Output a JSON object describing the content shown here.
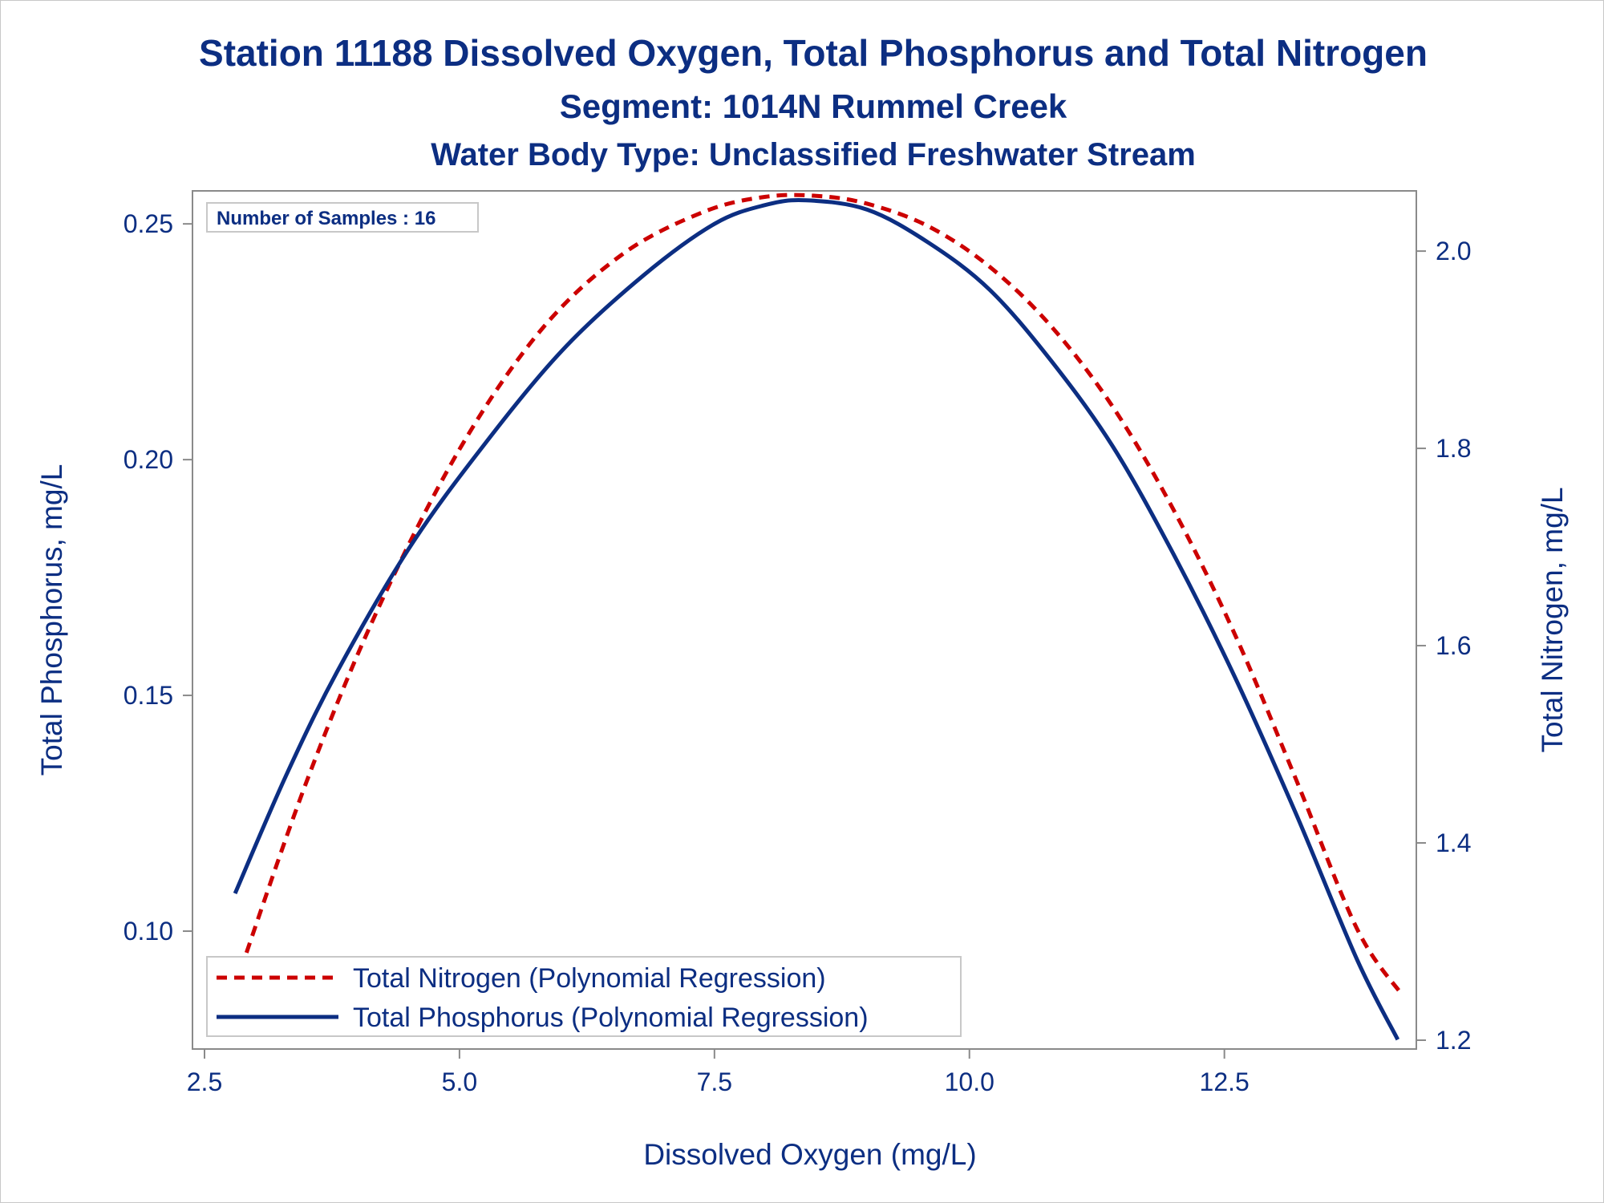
{
  "chart_data": {
    "type": "line",
    "title": "Station 11188  Dissolved Oxygen, Total Phosphorus and Total Nitrogen",
    "subtitle": "Segment: 1014N  Rummel Creek",
    "subtitle2": "Water Body Type: Unclassified Freshwater Stream",
    "xlabel": "Dissolved Oxygen (mg/L)",
    "ylabel": "Total Phosphorus, mg/L",
    "y2label": "Total Nitrogen, mg/L",
    "xlim": [
      2.5,
      14.5
    ],
    "ylim": [
      0.075,
      0.257
    ],
    "y2lim": [
      1.2,
      2.07
    ],
    "x_ticks": [
      "2.5",
      "5.0",
      "7.5",
      "10.0",
      "12.5"
    ],
    "y_ticks": [
      "0.10",
      "0.15",
      "0.20",
      "0.25"
    ],
    "y2_ticks": [
      "1.2",
      "1.4",
      "1.6",
      "1.8",
      "2.0"
    ],
    "inset_label": "Number of Samples : 16",
    "legend_position": "bottom-left",
    "grid": false,
    "series": [
      {
        "name": "Total Nitrogen (Polynomial Regression)",
        "axis": "y2",
        "style": "dashed",
        "color": "#cc0000",
        "x": [
          2.8,
          3.5,
          4.2,
          5.0,
          5.8,
          6.6,
          7.4,
          8.0,
          8.5,
          9.0,
          9.6,
          10.2,
          10.8,
          11.4,
          12.0,
          12.6,
          13.2,
          13.8,
          14.25
        ],
        "values": [
          1.255,
          1.462,
          1.637,
          1.799,
          1.92,
          1.997,
          2.04,
          2.055,
          2.056,
          2.048,
          2.025,
          1.984,
          1.924,
          1.843,
          1.738,
          1.612,
          1.465,
          1.313,
          1.245
        ]
      },
      {
        "name": "Total Phosphorus (Polynomial Regression)",
        "axis": "y",
        "style": "solid",
        "color": "#0c2e82",
        "x": [
          2.8,
          3.3,
          3.8,
          4.5,
          5.2,
          6.0,
          6.8,
          7.5,
          8.0,
          8.4,
          9.0,
          9.6,
          10.2,
          10.8,
          11.4,
          12.0,
          12.6,
          13.2,
          13.8,
          14.2
        ],
        "values": [
          0.108,
          0.133,
          0.155,
          0.181,
          0.202,
          0.223,
          0.239,
          0.25,
          0.254,
          0.255,
          0.253,
          0.246,
          0.236,
          0.221,
          0.203,
          0.18,
          0.154,
          0.125,
          0.094,
          0.077
        ]
      }
    ]
  }
}
